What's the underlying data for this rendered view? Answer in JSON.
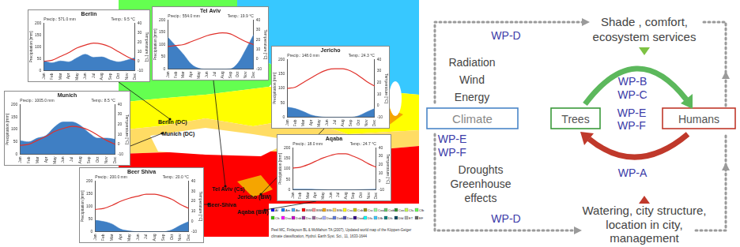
{
  "chart_data": [
    {
      "type": "line",
      "title": "Berlin",
      "annotations": [
        "Precip.: 571.0 mm",
        "Temp.: 9.5 °C"
      ],
      "categories": [
        "Jan",
        "Feb",
        "Mar",
        "Apr",
        "May",
        "Jun",
        "Jul",
        "Aug",
        "Sep",
        "Oct",
        "Nov",
        "Dec"
      ],
      "ylabel": "Precipitation [mm]",
      "y2label": "Temperature [°C]",
      "ylim": [
        0,
        200
      ],
      "yticks": [
        0,
        50,
        100,
        150,
        200
      ],
      "y2lim": [
        -10,
        40
      ],
      "y2ticks": [
        -10,
        0,
        10,
        20,
        30,
        40
      ],
      "grid": false,
      "series": [
        {
          "type": "area",
          "color": "#3f7fc4",
          "values": [
            42,
            33,
            41,
            37,
            54,
            69,
            56,
            58,
            45,
            37,
            44,
            55
          ]
        },
        {
          "type": "line",
          "color": "#e0302a",
          "axis": "y2",
          "values": [
            0,
            1,
            5,
            9,
            14,
            17,
            19,
            18,
            15,
            10,
            5,
            1
          ]
        }
      ]
    },
    {
      "type": "line",
      "title": "Tel Aviv",
      "annotations": [
        "Precip.: 554.0 mm",
        "Temp.: 19.9 °C"
      ],
      "categories": [
        "Jan",
        "Feb",
        "Mar",
        "Apr",
        "May",
        "Jun",
        "Jul",
        "Aug",
        "Sep",
        "Oct",
        "Nov",
        "Dec"
      ],
      "ylabel": "Precipitation [mm]",
      "y2label": "Temperature [°C]",
      "ylim": [
        0,
        200
      ],
      "yticks": [
        0,
        50,
        100,
        150,
        200
      ],
      "y2lim": [
        -10,
        40
      ],
      "y2ticks": [
        -10,
        0,
        10,
        20,
        30,
        40
      ],
      "grid": false,
      "series": [
        {
          "type": "area",
          "color": "#3f7fc4",
          "values": [
            130,
            95,
            60,
            20,
            3,
            0,
            0,
            0,
            1,
            25,
            80,
            140
          ]
        },
        {
          "type": "line",
          "color": "#e0302a",
          "axis": "y2",
          "values": [
            13,
            14,
            15,
            18,
            21,
            24,
            26,
            27,
            26,
            22,
            18,
            15
          ]
        }
      ]
    },
    {
      "type": "line",
      "title": "Jericho",
      "annotations": [
        "Precip.: 148.0 mm",
        "Temp.: 24.3 °C"
      ],
      "categories": [
        "Jan",
        "Feb",
        "Mar",
        "Apr",
        "May",
        "Jun",
        "Jul",
        "Aug",
        "Sep",
        "Oct",
        "Nov",
        "Dec"
      ],
      "ylabel": "Precipitation [mm]",
      "y2label": "Temperature [°C]",
      "ylim": [
        0,
        200
      ],
      "yticks": [
        0,
        50,
        100,
        150,
        200
      ],
      "y2lim": [
        -10,
        40
      ],
      "y2ticks": [
        -10,
        0,
        10,
        20,
        30,
        40
      ],
      "grid": false,
      "series": [
        {
          "type": "area",
          "color": "#3f7fc4",
          "values": [
            35,
            30,
            20,
            8,
            2,
            0,
            0,
            0,
            0,
            5,
            18,
            30
          ]
        },
        {
          "type": "line",
          "color": "#e0302a",
          "axis": "y2",
          "values": [
            15,
            16,
            20,
            24,
            28,
            31,
            32,
            32,
            30,
            26,
            21,
            17
          ]
        }
      ]
    },
    {
      "type": "line",
      "title": "Munich",
      "annotations": [
        "Precip.: 1005.0 mm",
        "Temp.: 8.5 °C"
      ],
      "categories": [
        "Jan",
        "Feb",
        "Mar",
        "Apr",
        "May",
        "Jun",
        "Jul",
        "Aug",
        "Sep",
        "Oct",
        "Nov",
        "Dec"
      ],
      "ylabel": "Precipitation [mm]",
      "y2label": "Temperature [°C]",
      "ylim": [
        0,
        200
      ],
      "yticks": [
        0,
        50,
        100,
        150,
        200
      ],
      "y2lim": [
        -10,
        40
      ],
      "y2ticks": [
        -10,
        0,
        10,
        20,
        30,
        40
      ],
      "grid": false,
      "series": [
        {
          "type": "area",
          "color": "#3f7fc4",
          "values": [
            55,
            50,
            65,
            75,
            110,
            130,
            130,
            115,
            85,
            65,
            65,
            60
          ]
        },
        {
          "type": "line",
          "color": "#e0302a",
          "axis": "y2",
          "values": [
            -1,
            0,
            4,
            8,
            13,
            16,
            18,
            17,
            14,
            9,
            4,
            0
          ]
        }
      ]
    },
    {
      "type": "line",
      "title": "Aqaba",
      "annotations": [
        "Precip.: 18.0 mm",
        "Temp.: 24.7 °C"
      ],
      "categories": [
        "Jan",
        "Feb",
        "Mar",
        "Apr",
        "May",
        "Jun",
        "Jul",
        "Aug",
        "Sep",
        "Oct",
        "Nov",
        "Dec"
      ],
      "ylabel": "Precipitation [mm]",
      "y2label": "Temperature [°C]",
      "ylim": [
        0,
        200
      ],
      "yticks": [
        0,
        50,
        100,
        150,
        200
      ],
      "y2lim": [
        -10,
        40
      ],
      "y2ticks": [
        -10,
        0,
        10,
        20,
        30,
        40
      ],
      "grid": false,
      "series": [
        {
          "type": "area",
          "color": "#3f7fc4",
          "values": [
            3,
            3,
            3,
            2,
            1,
            0,
            0,
            0,
            0,
            1,
            2,
            3
          ]
        },
        {
          "type": "line",
          "color": "#e0302a",
          "axis": "y2",
          "values": [
            16,
            17,
            20,
            24,
            28,
            31,
            33,
            33,
            30,
            26,
            21,
            17
          ]
        }
      ]
    },
    {
      "type": "line",
      "title": "Beer Shiva",
      "annotations": [
        "Precip.: 200.0 mm",
        "Temp.: 20.0 °C"
      ],
      "categories": [
        "Jan",
        "Feb",
        "Mar",
        "Apr",
        "May",
        "Jun",
        "Jul",
        "Aug",
        "Sep",
        "Oct",
        "Nov",
        "Dec"
      ],
      "ylabel": "Precipitation [mm]",
      "y2label": "Temperature [°C]",
      "ylim": [
        0,
        200
      ],
      "yticks": [
        0,
        50,
        100,
        150,
        200
      ],
      "y2lim": [
        -10,
        40
      ],
      "y2ticks": [
        -10,
        0,
        10,
        20,
        30,
        40
      ],
      "grid": false,
      "series": [
        {
          "type": "area",
          "color": "#3f7fc4",
          "values": [
            45,
            40,
            30,
            10,
            3,
            0,
            0,
            0,
            0,
            7,
            25,
            40
          ]
        },
        {
          "type": "line",
          "color": "#e0302a",
          "axis": "y2",
          "values": [
            12,
            13,
            16,
            20,
            23,
            25,
            27,
            27,
            25,
            22,
            17,
            13
          ]
        }
      ]
    }
  ],
  "map": {
    "cities": [
      "Berlin (DC)",
      "Tel Aviv (Cs)",
      "Jericho (BW)",
      "Munich (DC)",
      "Aqaba (BW)",
      "Beer-Shiva"
    ],
    "classes": [
      {
        "code": "Af",
        "color": "#0000ff"
      },
      {
        "code": "Am",
        "color": "#0078ff"
      },
      {
        "code": "Aw",
        "color": "#46aafa"
      },
      {
        "code": "BWh",
        "color": "#ff0000"
      },
      {
        "code": "BWk",
        "color": "#ff9696"
      },
      {
        "code": "BSh",
        "color": "#f5a500"
      },
      {
        "code": "BSk",
        "color": "#ffdc64"
      },
      {
        "code": "Csa",
        "color": "#ffff00"
      },
      {
        "code": "Csb",
        "color": "#c8c800"
      },
      {
        "code": "Csc",
        "color": "#969600"
      },
      {
        "code": "Cwa",
        "color": "#96ff96"
      },
      {
        "code": "Cwb",
        "color": "#64c864"
      },
      {
        "code": "Cwc",
        "color": "#329632"
      },
      {
        "code": "Cfa",
        "color": "#c8ff50"
      },
      {
        "code": "Cfb",
        "color": "#64ff50"
      },
      {
        "code": "Cfc",
        "color": "#32c800"
      },
      {
        "code": "Dsa",
        "color": "#ff00ff"
      },
      {
        "code": "Dsb",
        "color": "#c800c8"
      },
      {
        "code": "Dsc",
        "color": "#963296"
      },
      {
        "code": "Dsd",
        "color": "#966496"
      },
      {
        "code": "Dwa",
        "color": "#aaafff"
      },
      {
        "code": "Dwb",
        "color": "#5a78dc"
      },
      {
        "code": "Dwc",
        "color": "#4b50b4"
      },
      {
        "code": "Dwd",
        "color": "#320087"
      },
      {
        "code": "Dfa",
        "color": "#00ffff"
      },
      {
        "code": "Dfb",
        "color": "#37c8ff"
      },
      {
        "code": "Dfc",
        "color": "#007d7d"
      },
      {
        "code": "Dfd",
        "color": "#00465f"
      },
      {
        "code": "ET",
        "color": "#b2b2b2"
      },
      {
        "code": "EF",
        "color": "#666666"
      }
    ],
    "credit": [
      "Peel MC, Finlayson BL & McMahon TA (2007), Updated world map of the Köppen-Geiger",
      "climate classification, Hydrol. Earth Syst. Sci., 11, 1633-1644"
    ]
  },
  "diagram": {
    "nodes": {
      "climate": "Climate",
      "trees": "Trees",
      "humans": "Humans"
    },
    "climate_factors_above": [
      "Radiation",
      "Wind",
      "Energy"
    ],
    "climate_factors_below": [
      "Droughts",
      "Greenhouse",
      "effects"
    ],
    "top_output": [
      "Shade , comfort,",
      "ecosystem services"
    ],
    "bottom_output": [
      "Watering, city structure,",
      "location in city,",
      "management"
    ],
    "wp_top_loop": "WP-D",
    "wp_bottom_loop": "WP-D",
    "wp_trees_to_humans": [
      "WP-B",
      "WP-C"
    ],
    "wp_trees_humans": [
      "WP-E",
      "WP-F"
    ],
    "wp_climate": [
      "WP-E",
      "WP-F"
    ],
    "wp_humans_to_trees": "WP-A"
  }
}
